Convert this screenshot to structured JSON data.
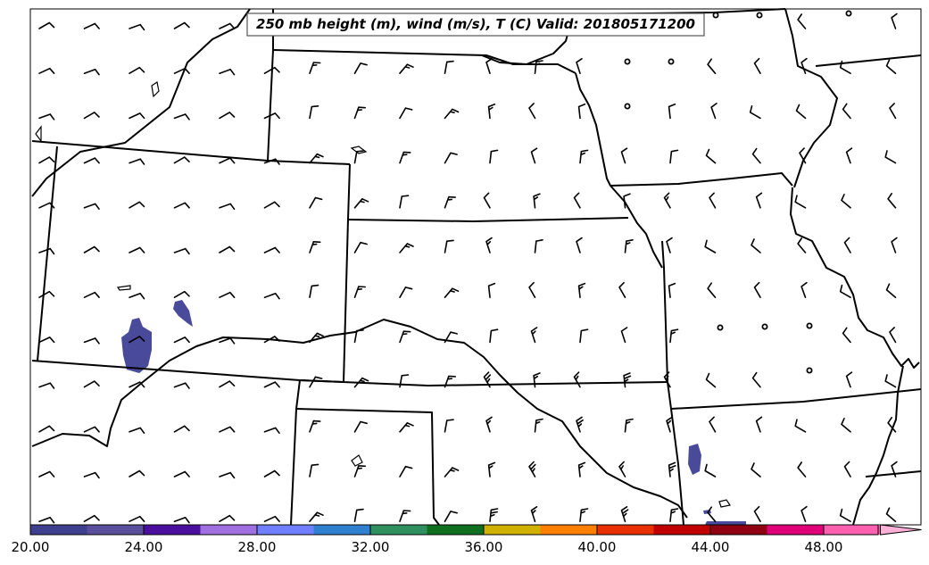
{
  "title": "250 mb height (m), wind (m/s), T (C) Valid: 201805171200",
  "colorbar": {
    "ticks": [
      "20.00",
      "24.00",
      "28.00",
      "32.00",
      "36.00",
      "40.00",
      "44.00",
      "48.00"
    ],
    "colors": [
      "#3f3f8f",
      "#5a4f9a",
      "#4b0fa0",
      "#a070e0",
      "#6f7fff",
      "#3080d0",
      "#2f8f5f",
      "#0f6f1f",
      "#d0b000",
      "#ff8000",
      "#e83000",
      "#c00000",
      "#8f0010",
      "#e0007a",
      "#ff60b0",
      "#ffb0d8"
    ]
  },
  "colors": {
    "temperature_patch": "#4a4a9a",
    "lines": "#000000"
  }
}
